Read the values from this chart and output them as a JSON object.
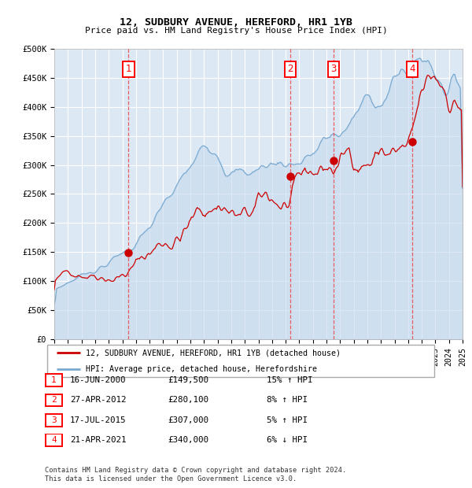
{
  "title": "12, SUDBURY AVENUE, HEREFORD, HR1 1YB",
  "subtitle": "Price paid vs. HM Land Registry's House Price Index (HPI)",
  "legend_line1": "12, SUDBURY AVENUE, HEREFORD, HR1 1YB (detached house)",
  "legend_line2": "HPI: Average price, detached house, Herefordshire",
  "transactions": [
    {
      "num": 1,
      "date": "16-JUN-2000",
      "year": 2000.46,
      "price": 149500,
      "pct": "15%",
      "dir": "↑"
    },
    {
      "num": 2,
      "date": "27-APR-2012",
      "year": 2012.32,
      "price": 280100,
      "pct": "8%",
      "dir": "↑"
    },
    {
      "num": 3,
      "date": "17-JUL-2015",
      "year": 2015.54,
      "price": 307000,
      "pct": "5%",
      "dir": "↑"
    },
    {
      "num": 4,
      "date": "21-APR-2021",
      "year": 2021.31,
      "price": 340000,
      "pct": "6%",
      "dir": "↓"
    }
  ],
  "red_line_color": "#cc0000",
  "blue_line_color": "#7aaad0",
  "blue_fill_color": "#c5d9ed",
  "background_color": "#dde8f5",
  "grid_color": "#ffffff",
  "dashed_line_color": "#ee4444",
  "marker_color": "#cc0000",
  "ylim": [
    0,
    500000
  ],
  "xlim_start": 1995,
  "xlim_end": 2025,
  "footer": "Contains HM Land Registry data © Crown copyright and database right 2024.\nThis data is licensed under the Open Government Licence v3.0."
}
